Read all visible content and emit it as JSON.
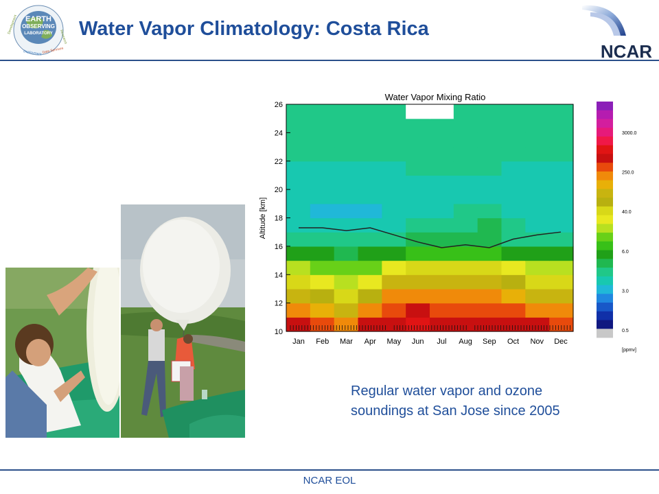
{
  "slide": {
    "title": "Water Vapor Climatology: Costa Rica",
    "footer": "NCAR EOL",
    "caption": [
      "Regular water vapor and ozone",
      "soundings at San Jose since 2005"
    ]
  },
  "logos": {
    "eol": {
      "lines": [
        "EARTH",
        "OBSERVING",
        "LABORATORY"
      ],
      "ring": [
        "Development",
        "Deployment",
        "Data Services",
        "Research"
      ]
    },
    "ncar": {
      "text": "NCAR"
    }
  },
  "colors": {
    "title": "#1f4e9a",
    "rule": "#2b4f8a",
    "caption": "#1f4e9a"
  },
  "chart_data": {
    "type": "heatmap",
    "title": "Water Vapor Mixing Ratio",
    "ylabel": "Altitude [km]",
    "xlabel": "",
    "x_categories": [
      "Jan",
      "Feb",
      "Mar",
      "Apr",
      "May",
      "Jun",
      "Jul",
      "Aug",
      "Sep",
      "Oct",
      "Nov",
      "Dec"
    ],
    "y_ticks": [
      10,
      12,
      14,
      16,
      18,
      20,
      22,
      24,
      26
    ],
    "ylim": [
      10,
      26
    ],
    "tropopause_line": {
      "x": [
        0,
        1,
        2,
        3,
        4,
        5,
        6,
        7,
        8,
        9,
        10,
        11
      ],
      "y": [
        17.3,
        17.3,
        17.1,
        17.3,
        16.8,
        16.3,
        15.9,
        16.1,
        15.9,
        16.5,
        16.8,
        17.0
      ]
    },
    "colorbar": {
      "unit": "[ppmv]",
      "tick_labels": [
        "3000.0",
        "250.0",
        "40.0",
        "6.0",
        "3.0",
        "0.5"
      ],
      "colors": [
        "#8b1fb8",
        "#b51cb0",
        "#d31e9e",
        "#e61a7a",
        "#f01848",
        "#e01414",
        "#c81010",
        "#e84a0c",
        "#f08a0a",
        "#e8b008",
        "#c8b410",
        "#b8b010",
        "#d8d818",
        "#e8e820",
        "#b8e020",
        "#68d018",
        "#38c018",
        "#20a018",
        "#20b850",
        "#20c888",
        "#18c8b0",
        "#20b8d8",
        "#2088e0",
        "#1858c8",
        "#1030a8",
        "#101880",
        "#c8c8c8"
      ]
    },
    "field": {
      "month_index": [
        0,
        1,
        2,
        3,
        4,
        5,
        6,
        7,
        8,
        9,
        10,
        11
      ],
      "z_km": [
        10.5,
        11.5,
        12.5,
        13.5,
        14.5,
        15.5,
        16.5,
        17.5,
        18.5,
        19.5,
        20.5,
        21.5,
        22.5,
        23.5,
        24.5,
        25.5
      ],
      "ppmv": [
        [
          300,
          280,
          200,
          300,
          400,
          450,
          400,
          400,
          380,
          350,
          300,
          280
        ],
        [
          150,
          130,
          80,
          160,
          250,
          300,
          280,
          270,
          250,
          220,
          170,
          150
        ],
        [
          80,
          70,
          40,
          70,
          150,
          200,
          180,
          170,
          150,
          130,
          90,
          80
        ],
        [
          40,
          38,
          25,
          35,
          80,
          100,
          100,
          90,
          80,
          70,
          50,
          40
        ],
        [
          20,
          18,
          15,
          18,
          35,
          45,
          45,
          40,
          40,
          32,
          25,
          20
        ],
        [
          8,
          8,
          7,
          8,
          10,
          12,
          13,
          12,
          12,
          10,
          9,
          8
        ],
        [
          4.5,
          4.4,
          4.2,
          4.4,
          5.0,
          5.5,
          5.8,
          5.9,
          6.0,
          5.2,
          4.8,
          4.5
        ],
        [
          3.2,
          3.0,
          2.8,
          2.8,
          3.3,
          4.0,
          4.8,
          5.2,
          5.5,
          4.5,
          3.6,
          3.2
        ],
        [
          2.8,
          2.5,
          2.4,
          2.5,
          2.7,
          3.2,
          3.7,
          4.0,
          4.3,
          3.6,
          3.1,
          2.8
        ],
        [
          3.0,
          2.8,
          2.8,
          2.9,
          3.0,
          3.2,
          3.3,
          3.4,
          3.4,
          3.3,
          3.2,
          3.0
        ],
        [
          3.3,
          3.2,
          3.2,
          3.3,
          3.4,
          3.5,
          3.6,
          3.6,
          3.6,
          3.5,
          3.4,
          3.3
        ],
        [
          3.6,
          3.6,
          3.6,
          3.6,
          3.7,
          3.8,
          3.8,
          3.8,
          3.8,
          3.7,
          3.7,
          3.6
        ],
        [
          3.9,
          3.9,
          3.9,
          3.9,
          4.0,
          4.0,
          4.0,
          4.0,
          4.0,
          4.0,
          3.9,
          3.9
        ],
        [
          4.2,
          4.2,
          4.2,
          4.2,
          4.3,
          4.4,
          4.4,
          4.4,
          4.3,
          4.2,
          4.2,
          4.2
        ],
        [
          4.4,
          4.4,
          4.4,
          4.5,
          4.6,
          4.7,
          4.7,
          4.7,
          4.6,
          4.5,
          4.4,
          4.4
        ],
        [
          4.6,
          4.6,
          4.6,
          4.7,
          4.8,
          null,
          null,
          4.9,
          4.8,
          4.7,
          4.6,
          4.6
        ]
      ]
    }
  }
}
